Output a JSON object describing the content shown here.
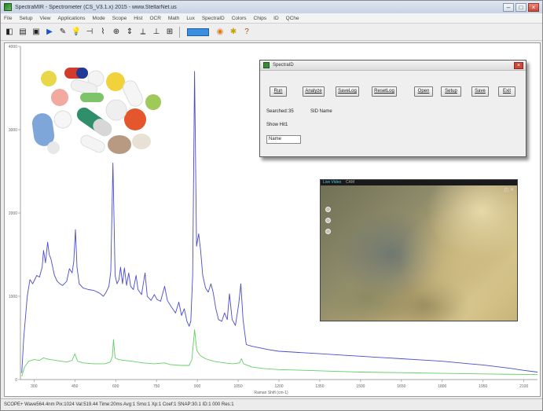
{
  "window": {
    "title": "SpectraMIR - Spectrometer (CS_V3.1.x) 2015 - www.StellarNet.us",
    "controls": [
      "–",
      "□",
      "×"
    ]
  },
  "menu": {
    "items": [
      "File",
      "Setup",
      "View",
      "Applications",
      "Mode",
      "Scope",
      "Hist",
      "OCR",
      "Math",
      "Lux",
      "SpectraID",
      "Colors",
      "Chips",
      "ID",
      "QChe"
    ]
  },
  "toolbar": {
    "icons": [
      "open-icon",
      "save-icon",
      "print-icon",
      "play-icon",
      "pin-icon",
      "bulb-icon",
      "marker-icon",
      "peak-icon",
      "zoom-icon",
      "scale-icon",
      "axis-icon",
      "ruler-icon",
      "tool-icon",
      "color-bar-icon",
      "palette-icon",
      "gear-icon",
      "help-icon"
    ],
    "glyphs": [
      "◧",
      "▤",
      "▣",
      "▶",
      "✎",
      "💡",
      "⊣",
      "⌇",
      "⊕",
      "⇕",
      "⟂",
      "⊥",
      "⊞",
      "",
      "◉",
      "✱",
      "?"
    ]
  },
  "chart_data": {
    "type": "line",
    "xlabel": "Raman Shift (cm-1)",
    "ylabel": "",
    "x_ticks": [
      "300",
      "450",
      "600",
      "750",
      "900",
      "1050",
      "1200",
      "1350",
      "1500",
      "1650",
      "1800",
      "1950",
      "2100"
    ],
    "y_ticks": [
      "4000",
      "3000",
      "2000",
      "1000",
      "0"
    ],
    "xlim": [
      250,
      2150
    ],
    "ylim": [
      0,
      4000
    ],
    "grid": false,
    "series": [
      {
        "color": "#4a4ad0",
        "points": [
          [
            255,
            80
          ],
          [
            262,
            500
          ],
          [
            275,
            1000
          ],
          [
            285,
            1200
          ],
          [
            295,
            1150
          ],
          [
            310,
            1250
          ],
          [
            320,
            1230
          ],
          [
            330,
            1350
          ],
          [
            335,
            1550
          ],
          [
            342,
            1400
          ],
          [
            350,
            1650
          ],
          [
            356,
            1500
          ],
          [
            362,
            1450
          ],
          [
            375,
            1250
          ],
          [
            385,
            1180
          ],
          [
            395,
            1150
          ],
          [
            405,
            1130
          ],
          [
            420,
            1180
          ],
          [
            430,
            1330
          ],
          [
            440,
            1280
          ],
          [
            446,
            1420
          ],
          [
            452,
            1800
          ],
          [
            458,
            1350
          ],
          [
            466,
            1150
          ],
          [
            480,
            1100
          ],
          [
            500,
            1080
          ],
          [
            520,
            1070
          ],
          [
            540,
            1040
          ],
          [
            555,
            1000
          ],
          [
            565,
            1050
          ],
          [
            575,
            1120
          ],
          [
            582,
            1300
          ],
          [
            590,
            2600
          ],
          [
            598,
            1250
          ],
          [
            605,
            1150
          ],
          [
            612,
            1200
          ],
          [
            618,
            1350
          ],
          [
            625,
            1150
          ],
          [
            632,
            1340
          ],
          [
            640,
            1130
          ],
          [
            648,
            1280
          ],
          [
            655,
            1120
          ],
          [
            665,
            1080
          ],
          [
            675,
            1250
          ],
          [
            682,
            1080
          ],
          [
            695,
            1020
          ],
          [
            708,
            1280
          ],
          [
            716,
            1000
          ],
          [
            730,
            950
          ],
          [
            742,
            1020
          ],
          [
            752,
            960
          ],
          [
            765,
            940
          ],
          [
            780,
            1120
          ],
          [
            790,
            950
          ],
          [
            805,
            870
          ],
          [
            820,
            800
          ],
          [
            832,
            930
          ],
          [
            842,
            770
          ],
          [
            852,
            850
          ],
          [
            862,
            700
          ],
          [
            870,
            640
          ],
          [
            876,
            700
          ],
          [
            883,
            1250
          ],
          [
            890,
            3700
          ],
          [
            897,
            1600
          ],
          [
            905,
            1750
          ],
          [
            912,
            1550
          ],
          [
            920,
            1250
          ],
          [
            930,
            1100
          ],
          [
            940,
            1050
          ],
          [
            950,
            1150
          ],
          [
            958,
            1050
          ],
          [
            968,
            850
          ],
          [
            978,
            720
          ],
          [
            990,
            700
          ],
          [
            1000,
            800
          ],
          [
            1010,
            720
          ],
          [
            1018,
            1030
          ],
          [
            1028,
            720
          ],
          [
            1040,
            650
          ],
          [
            1052,
            900
          ],
          [
            1060,
            1150
          ],
          [
            1068,
            720
          ],
          [
            1080,
            420
          ],
          [
            1100,
            400
          ],
          [
            1130,
            380
          ],
          [
            1160,
            360
          ],
          [
            1200,
            340
          ],
          [
            1250,
            330
          ],
          [
            1300,
            320
          ],
          [
            1350,
            310
          ],
          [
            1400,
            300
          ],
          [
            1450,
            290
          ],
          [
            1500,
            280
          ],
          [
            1550,
            270
          ],
          [
            1600,
            260
          ],
          [
            1650,
            250
          ],
          [
            1700,
            240
          ],
          [
            1750,
            230
          ],
          [
            1800,
            220
          ],
          [
            1850,
            205
          ],
          [
            1900,
            190
          ],
          [
            1950,
            175
          ],
          [
            2000,
            155
          ],
          [
            2050,
            135
          ],
          [
            2100,
            110
          ],
          [
            2150,
            90
          ]
        ]
      },
      {
        "color": "#63d063",
        "points": [
          [
            255,
            40
          ],
          [
            265,
            150
          ],
          [
            280,
            220
          ],
          [
            300,
            240
          ],
          [
            320,
            230
          ],
          [
            335,
            260
          ],
          [
            345,
            250
          ],
          [
            360,
            240
          ],
          [
            380,
            230
          ],
          [
            400,
            220
          ],
          [
            420,
            210
          ],
          [
            440,
            230
          ],
          [
            450,
            310
          ],
          [
            460,
            220
          ],
          [
            480,
            200
          ],
          [
            520,
            190
          ],
          [
            560,
            190
          ],
          [
            580,
            210
          ],
          [
            588,
            280
          ],
          [
            592,
            480
          ],
          [
            598,
            260
          ],
          [
            610,
            240
          ],
          [
            630,
            230
          ],
          [
            660,
            220
          ],
          [
            700,
            200
          ],
          [
            740,
            190
          ],
          [
            780,
            200
          ],
          [
            800,
            180
          ],
          [
            840,
            170
          ],
          [
            870,
            170
          ],
          [
            880,
            240
          ],
          [
            890,
            600
          ],
          [
            898,
            350
          ],
          [
            910,
            290
          ],
          [
            930,
            250
          ],
          [
            960,
            220
          ],
          [
            1000,
            200
          ],
          [
            1030,
            190
          ],
          [
            1055,
            200
          ],
          [
            1062,
            250
          ],
          [
            1070,
            190
          ],
          [
            1100,
            150
          ],
          [
            1150,
            130
          ],
          [
            1200,
            120
          ],
          [
            1300,
            110
          ],
          [
            1400,
            100
          ],
          [
            1500,
            90
          ],
          [
            1600,
            85
          ],
          [
            1700,
            80
          ],
          [
            1800,
            75
          ],
          [
            1900,
            70
          ],
          [
            2000,
            65
          ],
          [
            2150,
            60
          ]
        ]
      }
    ]
  },
  "dialog": {
    "title": "SpectraID",
    "close": "×",
    "buttons": {
      "run": "Run",
      "analyze": "Analyze",
      "savelog": "SaveLog",
      "resetlog": "ResetLog",
      "open": "Open",
      "setup": "Setup",
      "save": "Save",
      "exit": "Exit"
    },
    "searched_label": "Searched:",
    "searched_value": "35",
    "sid_name": "SID Name",
    "show_hit_label": "Show Hit",
    "show_hit_value": "1",
    "name_field": "Name"
  },
  "camera": {
    "label": "Live Video",
    "label2": "CAM",
    "corner": "◰ ✕"
  },
  "status": {
    "text": "SCOPE+   Wave564.4nm  Pix:1024  Val:519.44  Time:20ms  Avg:1  Smo:1  Xp:1  Coef:1  SNAP:30.1  ID:1     000  Res:1"
  }
}
